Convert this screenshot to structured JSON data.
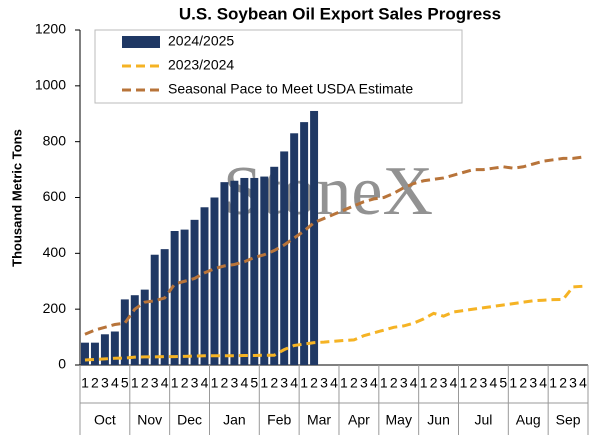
{
  "chart_data": {
    "type": "bar-line",
    "title": "U.S. Soybean Oil Export Sales Progress",
    "y_label": "Thousand Metric Tons",
    "watermark": "StoneX",
    "month_groups": [
      {
        "label": "Oct",
        "weeks": [
          "1",
          "2",
          "3",
          "4",
          "5"
        ]
      },
      {
        "label": "Nov",
        "weeks": [
          "1",
          "2",
          "3",
          "4"
        ]
      },
      {
        "label": "Dec",
        "weeks": [
          "1",
          "2",
          "3",
          "4"
        ]
      },
      {
        "label": "Jan",
        "weeks": [
          "1",
          "2",
          "3",
          "4",
          "5"
        ]
      },
      {
        "label": "Feb",
        "weeks": [
          "1",
          "2",
          "3",
          "4"
        ]
      },
      {
        "label": "Mar",
        "weeks": [
          "1",
          "2",
          "3",
          "4"
        ]
      },
      {
        "label": "Apr",
        "weeks": [
          "1",
          "2",
          "3",
          "4"
        ]
      },
      {
        "label": "May",
        "weeks": [
          "1",
          "2",
          "3",
          "4"
        ]
      },
      {
        "label": "Jun",
        "weeks": [
          "1",
          "2",
          "3",
          "4"
        ]
      },
      {
        "label": "Jul",
        "weeks": [
          "1",
          "2",
          "3",
          "4",
          "5"
        ]
      },
      {
        "label": "Aug",
        "weeks": [
          "1",
          "2",
          "3",
          "4"
        ]
      },
      {
        "label": "Sep",
        "weeks": [
          "1",
          "2",
          "3",
          "4"
        ]
      }
    ],
    "series": [
      {
        "name": "2024/2025",
        "kind": "bar",
        "color": "#1f3864",
        "values": [
          80,
          80,
          110,
          120,
          235,
          250,
          270,
          395,
          415,
          480,
          485,
          520,
          565,
          600,
          655,
          660,
          670,
          670,
          675,
          710,
          765,
          830,
          870,
          910,
          null,
          null,
          null,
          null,
          null,
          null,
          null,
          null,
          null,
          null,
          null,
          null,
          null,
          null,
          null,
          null,
          null,
          null,
          null,
          null,
          null,
          null,
          null,
          null,
          null,
          null,
          null
        ]
      },
      {
        "name": "2023/2024",
        "kind": "line",
        "color": "#f5b324",
        "values": [
          18,
          20,
          22,
          24,
          25,
          28,
          29,
          29,
          30,
          30,
          31,
          32,
          33,
          33,
          33,
          33,
          34,
          34,
          35,
          35,
          55,
          70,
          75,
          80,
          82,
          85,
          88,
          90,
          105,
          115,
          125,
          135,
          140,
          150,
          165,
          185,
          175,
          190,
          195,
          200,
          205,
          210,
          215,
          220,
          225,
          230,
          232,
          234,
          235,
          280,
          282
        ]
      },
      {
        "name": "Seasonal Pace to Meet USDA Estimate",
        "kind": "line",
        "color": "#b8743a",
        "values": [
          110,
          125,
          135,
          145,
          150,
          200,
          225,
          230,
          240,
          290,
          300,
          310,
          330,
          345,
          355,
          360,
          370,
          385,
          395,
          410,
          430,
          455,
          480,
          510,
          525,
          540,
          555,
          570,
          585,
          595,
          600,
          615,
          635,
          650,
          660,
          665,
          670,
          680,
          690,
          700,
          700,
          705,
          710,
          705,
          710,
          720,
          730,
          735,
          740,
          740,
          745
        ]
      }
    ],
    "ylim": [
      0,
      1200
    ],
    "yticks": [
      0,
      200,
      400,
      600,
      800,
      1000,
      1200
    ]
  }
}
